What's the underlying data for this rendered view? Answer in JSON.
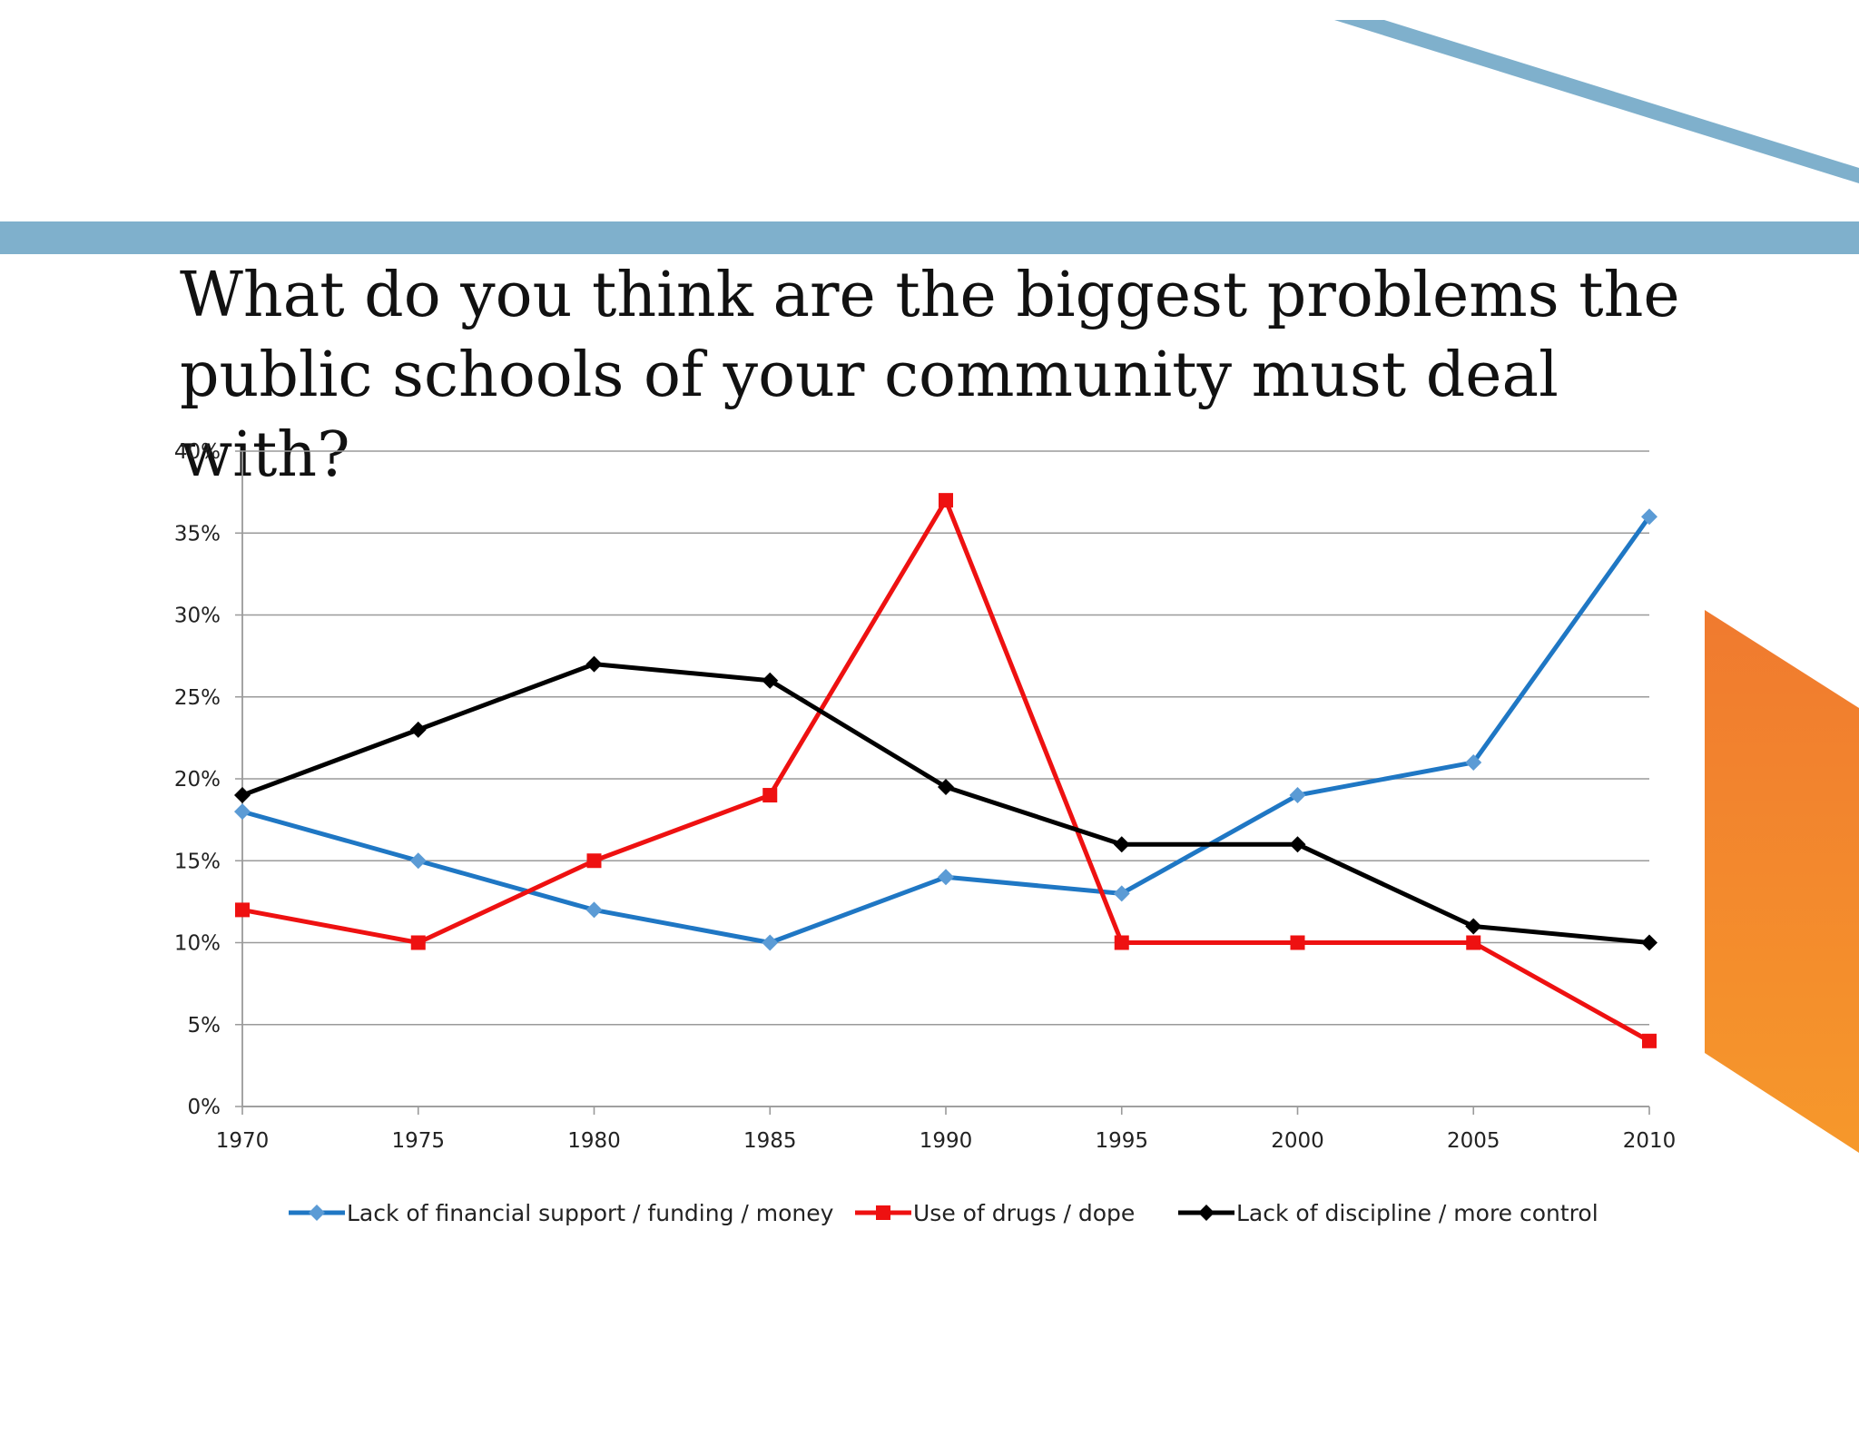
{
  "colors": {
    "accent_bar": "#7fb0cc",
    "accent_orange_top": "#f07a2f",
    "accent_orange_bottom": "#f6982b",
    "grid": "#9a9a9a",
    "axis": "#9a9a9a"
  },
  "chart_data": {
    "type": "line",
    "title": "What do you think are the biggest problems the public schools of your community must deal with?",
    "x": [
      1970,
      1975,
      1980,
      1985,
      1990,
      1995,
      2000,
      2005,
      2010
    ],
    "x_tick_labels": [
      "1970",
      "1975",
      "1980",
      "1985",
      "1990",
      "1995",
      "2000",
      "2005",
      "2010"
    ],
    "ylim": [
      0,
      40
    ],
    "y_tick_labels": [
      "0%",
      "5%",
      "10%",
      "15%",
      "20%",
      "25%",
      "30%",
      "35%",
      "40%"
    ],
    "grid": true,
    "legend_position": "bottom",
    "series": [
      {
        "name": "Lack of financial support / funding / money",
        "color": "#1f77c4",
        "marker": "diamond",
        "marker_color": "#5b9bd5",
        "values": [
          18,
          15,
          12,
          10,
          14,
          13,
          19,
          21,
          36
        ]
      },
      {
        "name": "Use of drugs / dope",
        "color": "#ee1111",
        "marker": "square",
        "marker_color": "#ee1111",
        "values": [
          12,
          10,
          15,
          19,
          37,
          10,
          10,
          10,
          4
        ]
      },
      {
        "name": "Lack of discipline / more control",
        "color": "#000000",
        "marker": "diamond",
        "marker_color": "#000000",
        "values": [
          19,
          23,
          27,
          26,
          19.5,
          16,
          16,
          11,
          10
        ]
      }
    ]
  }
}
